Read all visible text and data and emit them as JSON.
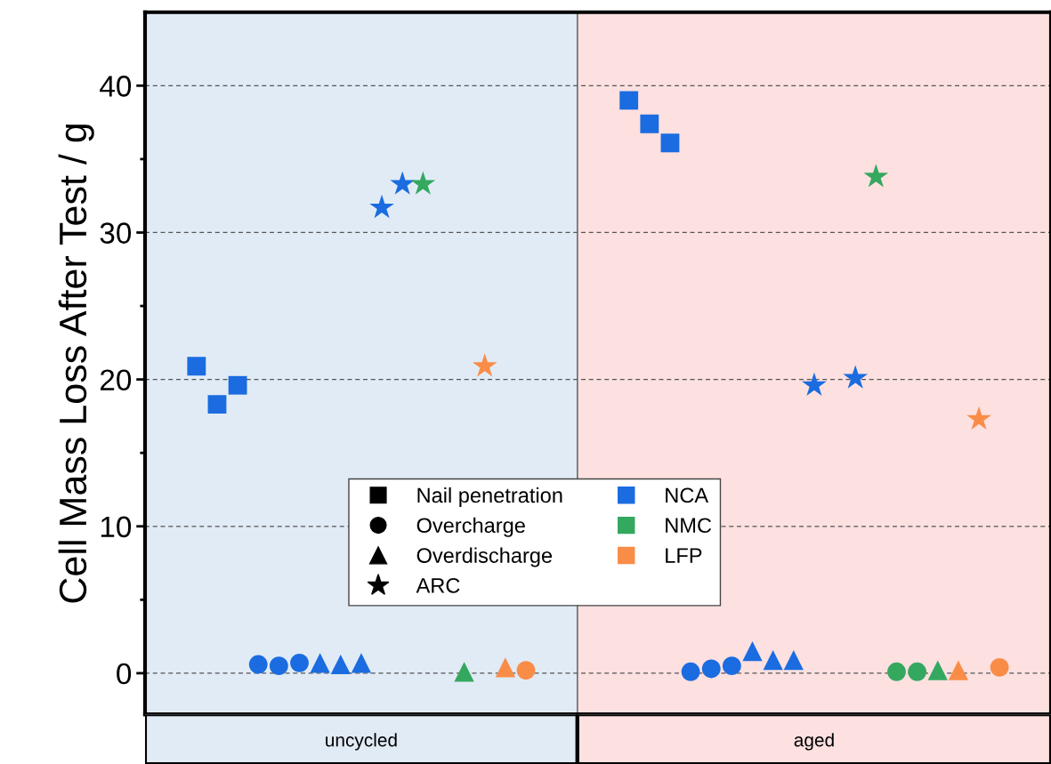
{
  "chart_data": {
    "type": "scatter",
    "ylabel": "Cell Mass Loss After Test / g",
    "categories": [
      null,
      null,
      null,
      null,
      null,
      null,
      null,
      null,
      null,
      null,
      null,
      null,
      null,
      null,
      null,
      null,
      null,
      null,
      null,
      null,
      null,
      null,
      null,
      null,
      null,
      null,
      null,
      null,
      null,
      null,
      null,
      null,
      null,
      null,
      null,
      null,
      null,
      null,
      null,
      null,
      null,
      null,
      null,
      null
    ],
    "ylim": [
      -2.8,
      45
    ],
    "yticks": [
      0,
      {
        "value": 5,
        "label": null
      },
      10,
      {
        "value": 15,
        "label": null
      },
      20,
      {
        "value": 25,
        "label": null
      },
      30,
      {
        "value": 35,
        "label": null
      },
      40
    ],
    "grid": "y",
    "legend": "bottom",
    "tick_labels": "y",
    "annotations": [
      "uncycled",
      "aged",
      "Nail penetration",
      "Overcharge",
      "Overdischarge",
      "ARC"
    ],
    "series": [
      {
        "name": "NCA",
        "color": "#1a6ce0",
        "marker": "square",
        "values": [
          null,
          null,
          20.9,
          18.3,
          19.6,
          null,
          null,
          null,
          null,
          null,
          null,
          null,
          null,
          null,
          null,
          null,
          null,
          null,
          null,
          null,
          null,
          null,
          null,
          39.0,
          37.4,
          36.1,
          null,
          null,
          null,
          null,
          null,
          null,
          null,
          null,
          null,
          null,
          null,
          null,
          null,
          null,
          null,
          null,
          null,
          null
        ]
      },
      {
        "color": "#1a6ce0",
        "marker": "circle",
        "values": [
          null,
          null,
          null,
          null,
          null,
          0.6,
          0.5,
          0.7,
          null,
          null,
          null,
          null,
          null,
          null,
          null,
          null,
          null,
          null,
          null,
          null,
          null,
          null,
          null,
          null,
          null,
          null,
          0.1,
          0.3,
          0.5,
          null,
          null,
          null,
          null,
          null,
          null,
          null,
          null,
          null,
          null,
          null,
          null,
          null,
          null,
          null
        ]
      },
      {
        "color": "#1a6ce0",
        "marker": "triangle",
        "values": [
          null,
          null,
          null,
          null,
          null,
          null,
          null,
          null,
          0.7,
          0.6,
          0.7,
          null,
          null,
          null,
          null,
          null,
          null,
          null,
          null,
          null,
          null,
          null,
          null,
          null,
          null,
          null,
          null,
          null,
          null,
          1.5,
          0.9,
          0.9,
          null,
          null,
          null,
          null,
          null,
          null,
          null,
          null,
          null,
          null,
          null,
          null
        ]
      },
      {
        "color": "#1a6ce0",
        "marker": "star",
        "values": [
          null,
          null,
          null,
          null,
          null,
          null,
          null,
          null,
          null,
          null,
          null,
          31.7,
          33.3,
          null,
          null,
          null,
          null,
          null,
          null,
          null,
          null,
          null,
          null,
          null,
          null,
          null,
          null,
          null,
          null,
          null,
          null,
          null,
          19.6,
          null,
          20.1,
          null,
          null,
          null,
          null,
          null,
          null,
          null,
          null,
          null
        ]
      },
      {
        "name": "NMC",
        "color": "#35a860",
        "marker": "star",
        "values": [
          null,
          null,
          null,
          null,
          null,
          null,
          null,
          null,
          null,
          null,
          null,
          null,
          null,
          33.3,
          null,
          null,
          null,
          null,
          null,
          null,
          null,
          null,
          null,
          null,
          null,
          null,
          null,
          null,
          null,
          null,
          null,
          null,
          null,
          null,
          null,
          33.8,
          null,
          null,
          null,
          null,
          null,
          null,
          null,
          null
        ]
      },
      {
        "color": "#35a860",
        "marker": "triangle",
        "values": [
          null,
          null,
          null,
          null,
          null,
          null,
          null,
          null,
          null,
          null,
          null,
          null,
          null,
          null,
          null,
          0.1,
          null,
          null,
          null,
          null,
          null,
          null,
          null,
          null,
          null,
          null,
          null,
          null,
          null,
          null,
          null,
          null,
          null,
          null,
          null,
          null,
          null,
          null,
          0.2,
          null,
          null,
          null,
          null,
          null
        ]
      },
      {
        "color": "#35a860",
        "marker": "circle",
        "values": [
          null,
          null,
          null,
          null,
          null,
          null,
          null,
          null,
          null,
          null,
          null,
          null,
          null,
          null,
          null,
          null,
          null,
          null,
          null,
          null,
          null,
          null,
          null,
          null,
          null,
          null,
          null,
          null,
          null,
          null,
          null,
          null,
          null,
          null,
          null,
          null,
          0.1,
          0.1,
          null,
          null,
          null,
          null,
          null,
          null
        ]
      },
      {
        "name": "LFP",
        "color": "#f98d48",
        "marker": "star",
        "values": [
          null,
          null,
          null,
          null,
          null,
          null,
          null,
          null,
          null,
          null,
          null,
          null,
          null,
          null,
          null,
          null,
          20.9,
          null,
          null,
          null,
          null,
          null,
          null,
          null,
          null,
          null,
          null,
          null,
          null,
          null,
          null,
          null,
          null,
          null,
          null,
          null,
          null,
          null,
          null,
          null,
          17.3,
          null,
          null,
          null
        ]
      },
      {
        "color": "#f98d48",
        "marker": "triangle",
        "values": [
          null,
          null,
          null,
          null,
          null,
          null,
          null,
          null,
          null,
          null,
          null,
          null,
          null,
          null,
          null,
          null,
          null,
          0.4,
          null,
          null,
          null,
          null,
          null,
          null,
          null,
          null,
          null,
          null,
          null,
          null,
          null,
          null,
          null,
          null,
          null,
          null,
          null,
          null,
          null,
          0.2,
          null,
          null,
          null,
          null
        ]
      },
      {
        "color": "#f98d48",
        "marker": "circle",
        "values": [
          null,
          null,
          null,
          null,
          null,
          null,
          null,
          null,
          null,
          null,
          null,
          null,
          null,
          null,
          null,
          null,
          null,
          null,
          0.2,
          null,
          null,
          null,
          null,
          null,
          null,
          null,
          null,
          null,
          null,
          null,
          null,
          null,
          null,
          null,
          null,
          null,
          null,
          null,
          null,
          null,
          null,
          0.4,
          null,
          null
        ]
      }
    ]
  }
}
